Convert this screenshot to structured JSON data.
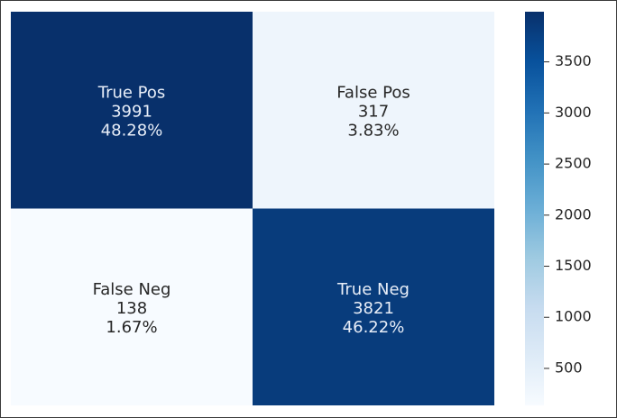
{
  "chart_data": {
    "type": "heatmap",
    "title": "",
    "xlabel": "",
    "ylabel": "",
    "colormap": "Blues",
    "grid": false,
    "legend": "colorbar-right",
    "matrix": [
      [
        {
          "label": "True Pos",
          "count": "3991",
          "percent": "48.28%",
          "value": 3991
        },
        {
          "label": "False Pos",
          "count": "317",
          "percent": "3.83%",
          "value": 317
        }
      ],
      [
        {
          "label": "False Neg",
          "count": "138",
          "percent": "1.67%",
          "value": 138
        },
        {
          "label": "True Neg",
          "count": "3821",
          "percent": "46.22%",
          "value": 3821
        }
      ]
    ],
    "colorbar": {
      "min": 138,
      "max": 3991,
      "ticks": [
        500,
        1000,
        1500,
        2000,
        2500,
        3000,
        3500
      ],
      "tick_labels": [
        "500",
        "1000",
        "1500",
        "2000",
        "2500",
        "3000",
        "3500"
      ]
    },
    "colors": {
      "dark": "#08306b",
      "text_dark_cell": "#e8eef8",
      "text_light_cell": "#262626"
    }
  }
}
